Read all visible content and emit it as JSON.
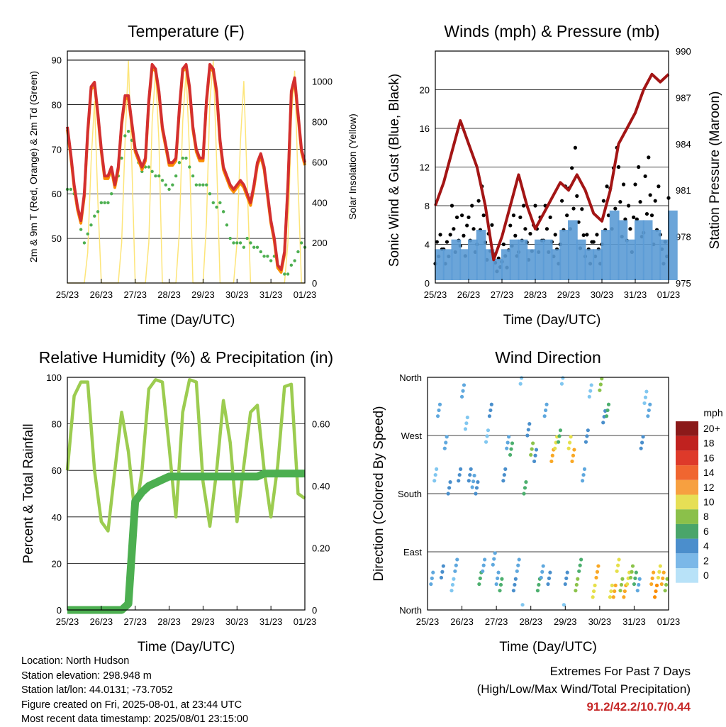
{
  "x_ticks": [
    "25/23",
    "26/23",
    "27/23",
    "28/23",
    "29/23",
    "30/23",
    "31/23",
    "01/23"
  ],
  "legend": {
    "title": "mph",
    "labels": [
      "20+",
      "18",
      "16",
      "14",
      "12",
      "10",
      "8",
      "6",
      "4",
      "2",
      "0"
    ],
    "colors": [
      "#991b1b",
      "#c62828",
      "#e53935",
      "#f4511e",
      "#fb8c00",
      "#f9a825",
      "#e6e04a",
      "#8bc34a",
      "#43a047",
      "#2e7d5b",
      "#1e88e5"
    ]
  },
  "footer": {
    "location": "Location: North Hudson",
    "elevation": "Station elevation: 298.948 m",
    "latlon": "Station lat/lon: 44.0131; -73.7052",
    "created": "Figure created on Fri, 2025-08-01, at 23:44 UTC",
    "recent": "Most recent data timestamp: 2025/08/01 23:15:00",
    "extremes_title": "Extremes For Past 7 Days",
    "extremes_sub": "(High/Low/Max Wind/Total Precipitation)",
    "extremes_values": "91.2/42.2/10.7/0.44"
  },
  "chart_data": [
    {
      "type": "line",
      "title": "Temperature (F)",
      "xlabel": "Time (Day/UTC)",
      "ylabel": "2m & 9m T (Red, Orange) & 2m Td (Green)",
      "y2label": "Solar Insolation (Yellow)",
      "ylim": [
        40,
        92
      ],
      "y2lim": [
        0,
        1150
      ],
      "yticks": [
        50,
        60,
        70,
        80,
        90
      ],
      "y2ticks": [
        0,
        200,
        400,
        600,
        800,
        1000
      ],
      "colors": {
        "t2m": "#d32f2f",
        "t9m": "#fb8c00",
        "td": "#4caf50",
        "solar": "#fde26a"
      },
      "x": [
        0,
        0.1,
        0.2,
        0.3,
        0.4,
        0.5,
        0.6,
        0.7,
        0.8,
        0.9,
        1.0,
        1.1,
        1.2,
        1.3,
        1.4,
        1.5,
        1.6,
        1.7,
        1.8,
        1.9,
        2.0,
        2.1,
        2.2,
        2.3,
        2.4,
        2.5,
        2.6,
        2.7,
        2.8,
        2.9,
        3.0,
        3.1,
        3.2,
        3.3,
        3.4,
        3.5,
        3.6,
        3.7,
        3.8,
        3.9,
        4.0,
        4.1,
        4.2,
        4.3,
        4.4,
        4.5,
        4.6,
        4.7,
        4.8,
        4.9,
        5.0,
        5.1,
        5.2,
        5.3,
        5.4,
        5.5,
        5.6,
        5.7,
        5.8,
        5.9,
        6.0,
        6.1,
        6.2,
        6.3,
        6.4,
        6.5,
        6.6,
        6.7,
        6.8,
        6.9,
        7.0
      ],
      "series": [
        {
          "name": "t2m",
          "values": [
            75,
            69,
            62,
            57,
            54,
            60,
            74,
            84,
            85,
            78,
            70,
            64,
            64,
            66,
            62,
            66,
            76,
            82,
            82,
            76,
            70,
            68,
            66,
            68,
            81,
            89,
            88,
            83,
            75,
            71,
            67,
            67,
            68,
            79,
            88,
            89,
            84,
            75,
            70,
            68,
            68,
            81,
            89,
            88,
            83,
            72,
            66,
            64,
            62,
            61,
            62,
            63,
            62,
            60,
            58,
            62,
            67,
            69,
            66,
            60,
            54,
            50,
            44,
            43,
            47,
            62,
            83,
            86,
            78,
            70,
            67
          ]
        },
        {
          "name": "td",
          "values": [
            61,
            61,
            60,
            57,
            52,
            49,
            51,
            53,
            55,
            56,
            58,
            58,
            58,
            60,
            62,
            64,
            68,
            73,
            74,
            72,
            70,
            67,
            65,
            66,
            66,
            65,
            64,
            64,
            63,
            62,
            61,
            62,
            64,
            67,
            68,
            68,
            66,
            64,
            62,
            62,
            62,
            62,
            60,
            58,
            57,
            58,
            56,
            53,
            50,
            49,
            49,
            49,
            48,
            50,
            49,
            48,
            48,
            47,
            46,
            46,
            45,
            46,
            44,
            43,
            42,
            42,
            44,
            45,
            47,
            49,
            48
          ]
        },
        {
          "name": "solar",
          "values": [
            0,
            0,
            0,
            0,
            0,
            0,
            150,
            600,
            900,
            400,
            0,
            0,
            0,
            0,
            0,
            0,
            200,
            700,
            1100,
            600,
            0,
            0,
            0,
            0,
            200,
            800,
            1050,
            700,
            0,
            0,
            0,
            0,
            0,
            250,
            800,
            1050,
            650,
            0,
            0,
            0,
            0,
            300,
            900,
            1100,
            600,
            0,
            0,
            0,
            0,
            0,
            200,
            700,
            1000,
            500,
            0,
            0,
            0,
            0,
            0,
            0,
            0,
            0,
            0,
            0,
            0,
            200,
            800,
            1050,
            500,
            0,
            0
          ]
        }
      ]
    },
    {
      "type": "line",
      "title": "Winds (mph) & Pressure (mb)",
      "xlabel": "Time (Day/UTC)",
      "ylabel": "Sonic Wind & Gust (Blue, Black)",
      "y2label": "Station Pressure (Maroon)",
      "ylim": [
        0,
        24
      ],
      "y2lim": [
        975,
        990
      ],
      "yticks": [
        0,
        4,
        8,
        12,
        16,
        20
      ],
      "y2ticks": [
        975,
        978,
        981,
        984,
        987,
        990
      ],
      "colors": {
        "wind": "#5b9bd5",
        "gust": "#000000",
        "pressure": "#a31515"
      },
      "x": [
        0,
        0.25,
        0.5,
        0.75,
        1.0,
        1.25,
        1.5,
        1.75,
        2.0,
        2.25,
        2.5,
        2.75,
        3.0,
        3.25,
        3.5,
        3.75,
        4.0,
        4.25,
        4.5,
        4.75,
        5.0,
        5.25,
        5.5,
        5.75,
        6.0,
        6.25,
        6.5,
        6.75,
        7.0
      ],
      "series": [
        {
          "name": "wind",
          "values": [
            2,
            2,
            3,
            2,
            3,
            4,
            2,
            1,
            2,
            3,
            3,
            2,
            3,
            3,
            2,
            4,
            5,
            3,
            2,
            2,
            4,
            6,
            5,
            3,
            5,
            5,
            4,
            3,
            6
          ]
        },
        {
          "name": "gust",
          "values": [
            5,
            5,
            8,
            7,
            8,
            10,
            6,
            3,
            4,
            7,
            8,
            6,
            8,
            8,
            5,
            10,
            14,
            9,
            5,
            5,
            10,
            14,
            12,
            8,
            12,
            13,
            10,
            5,
            16
          ]
        },
        {
          "name": "pressure",
          "values": [
            980,
            981.5,
            983.5,
            985.5,
            984,
            982.5,
            980,
            976.5,
            978,
            980,
            982,
            980,
            978.5,
            979.5,
            980.5,
            981.5,
            981,
            982,
            981,
            979.5,
            979,
            981,
            984,
            985,
            986,
            987.5,
            988.5,
            988,
            988.5
          ]
        }
      ]
    },
    {
      "type": "line",
      "title": "Relative Humidity (%) & Precipitation (in)",
      "xlabel": "Time (Day/UTC)",
      "ylabel": "Percent & Total Rainfall",
      "ylim": [
        0,
        100
      ],
      "y2lim": [
        0,
        0.75
      ],
      "yticks": [
        0,
        20,
        40,
        60,
        80,
        100
      ],
      "y2ticks": [
        0.0,
        0.2,
        0.4,
        0.6
      ],
      "colors": {
        "rh": "#9ccc50",
        "precip": "#4caf50"
      },
      "x": [
        0,
        0.2,
        0.4,
        0.6,
        0.8,
        1.0,
        1.2,
        1.4,
        1.6,
        1.8,
        2.0,
        2.2,
        2.4,
        2.6,
        2.8,
        3.0,
        3.2,
        3.4,
        3.6,
        3.8,
        4.0,
        4.2,
        4.4,
        4.6,
        4.8,
        5.0,
        5.2,
        5.4,
        5.6,
        5.8,
        6.0,
        6.2,
        6.4,
        6.6,
        6.8,
        7.0
      ],
      "series": [
        {
          "name": "rh",
          "values": [
            60,
            92,
            98,
            98,
            60,
            38,
            34,
            60,
            85,
            68,
            40,
            60,
            95,
            99,
            98,
            70,
            40,
            85,
            99,
            98,
            55,
            36,
            60,
            90,
            72,
            38,
            62,
            85,
            88,
            60,
            40,
            62,
            96,
            97,
            50,
            48
          ]
        },
        {
          "name": "precip",
          "values": [
            0,
            0,
            0,
            0,
            0,
            0,
            0,
            0,
            0,
            0.02,
            0.35,
            0.38,
            0.4,
            0.41,
            0.42,
            0.43,
            0.43,
            0.43,
            0.43,
            0.43,
            0.43,
            0.43,
            0.43,
            0.43,
            0.43,
            0.43,
            0.43,
            0.43,
            0.43,
            0.44,
            0.44,
            0.44,
            0.44,
            0.44,
            0.44,
            0.44
          ]
        }
      ]
    },
    {
      "type": "scatter",
      "title": "Wind Direction",
      "xlabel": "Time (Day/UTC)",
      "ylabel": "Direction (Colored By Speed)",
      "yticks": [
        "North",
        "East",
        "South",
        "West",
        "North"
      ],
      "ylim": [
        0,
        360
      ],
      "series": [
        {
          "name": "direction",
          "x": [
            0.1,
            0.2,
            0.3,
            0.4,
            0.5,
            0.6,
            0.7,
            0.8,
            0.9,
            1.0,
            1.1,
            1.2,
            1.3,
            1.4,
            1.5,
            1.6,
            1.7,
            1.8,
            1.9,
            2.0,
            2.1,
            2.2,
            2.3,
            2.4,
            2.5,
            2.6,
            2.7,
            2.8,
            2.9,
            3.0,
            3.1,
            3.2,
            3.3,
            3.4,
            3.5,
            3.6,
            3.7,
            3.8,
            3.9,
            4.0,
            4.1,
            4.2,
            4.3,
            4.4,
            4.5,
            4.6,
            4.7,
            4.8,
            4.9,
            5.0,
            5.1,
            5.2,
            5.3,
            5.4,
            5.5,
            5.6,
            5.7,
            5.8,
            5.9,
            6.0,
            6.1,
            6.2,
            6.3,
            6.4,
            6.5,
            6.6,
            6.7,
            6.8,
            6.9
          ],
          "y": [
            40,
            200,
            300,
            50,
            250,
            180,
            30,
            60,
            200,
            330,
            280,
            200,
            190,
            180,
            40,
            60,
            260,
            300,
            70,
            40,
            30,
            200,
            250,
            240,
            30,
            60,
            350,
            180,
            270,
            240,
            230,
            30,
            50,
            300,
            40,
            230,
            250,
            260,
            350,
            40,
            250,
            230,
            30,
            60,
            200,
            260,
            330,
            20,
            50,
            340,
            290,
            300,
            20,
            20,
            60,
            30,
            20,
            40,
            50,
            40,
            30,
            250,
            320,
            300,
            40,
            20,
            50,
            40,
            30
          ],
          "speed": [
            2,
            1,
            2,
            3,
            2,
            3,
            1,
            2,
            3,
            2,
            1,
            3,
            2,
            3,
            4,
            2,
            1,
            3,
            2,
            2,
            4,
            3,
            2,
            4,
            3,
            2,
            1,
            4,
            3,
            5,
            3,
            4,
            2,
            2,
            3,
            7,
            6,
            4,
            1,
            3,
            6,
            7,
            5,
            4,
            2,
            3,
            1,
            6,
            7,
            5,
            3,
            4,
            6,
            7,
            6,
            5,
            7,
            6,
            5,
            4,
            2,
            3,
            1,
            2,
            7,
            8,
            6,
            7,
            5
          ]
        }
      ]
    }
  ],
  "titles": {
    "temp": "Temperature (F)",
    "wind": "Winds (mph) & Pressure (mb)",
    "rh": "Relative Humidity (%) & Precipitation (in)",
    "dir": "Wind Direction"
  }
}
